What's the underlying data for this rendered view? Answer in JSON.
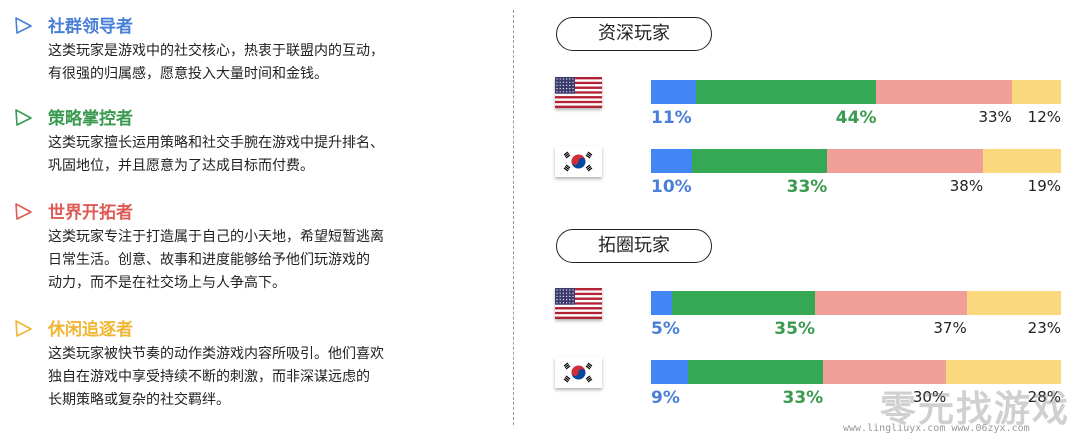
{
  "segments": [
    {
      "title": "社群领导者",
      "color": "#4A7FD9",
      "icon": "triangle-play-icon",
      "lines": [
        "这类玩家是游戏中的社交核心，热衷于联盟内的互动，",
        "有很强的归属感，愿意投入大量时间和金钱。"
      ]
    },
    {
      "title": "策略掌控者",
      "color": "#3A9A50",
      "icon": "triangle-play-icon",
      "lines": [
        "这类玩家擅长运用策略和社交手腕在游戏中提升排名、",
        "巩固地位，并且愿意为了达成目标而付费。"
      ]
    },
    {
      "title": "世界开拓者",
      "color": "#E05A55",
      "icon": "triangle-play-icon",
      "lines": [
        "这类玩家专注于打造属于自己的小天地，希望短暂逃离",
        "日常生活。创意、故事和进度能够给予他们玩游戏的",
        "动力，而不是在社交场上与人争高下。"
      ]
    },
    {
      "title": "休闲追逐者",
      "color": "#F2B531",
      "icon": "triangle-play-icon",
      "lines": [
        "这类玩家被快节奏的动作类游戏内容所吸引。他们喜欢",
        "独自在游戏中享受持续不断的刺激，而非深谋远虑的",
        "长期策略或复杂的社交羁绊。"
      ]
    }
  ],
  "chart_data": {
    "type": "bar",
    "orientation": "horizontal-stacked-100",
    "segment_colors": [
      "#4285F4",
      "#34A853",
      "#F1A099",
      "#FAD97E"
    ],
    "groups": [
      {
        "title": "资深玩家",
        "rows": [
          {
            "country": "USA",
            "flag": "us-flag-icon",
            "values": [
              11,
              44,
              33,
              12
            ],
            "labels": [
              "11%",
              "44%",
              "33%",
              "12%"
            ]
          },
          {
            "country": "South Korea",
            "flag": "kr-flag-icon",
            "values": [
              10,
              33,
              38,
              19
            ],
            "labels": [
              "10%",
              "33%",
              "38%",
              "19%"
            ]
          }
        ]
      },
      {
        "title": "拓圈玩家",
        "rows": [
          {
            "country": "USA",
            "flag": "us-flag-icon",
            "values": [
              5,
              35,
              37,
              23
            ],
            "labels": [
              "5%",
              "35%",
              "37%",
              "23%"
            ]
          },
          {
            "country": "South Korea",
            "flag": "kr-flag-icon",
            "values": [
              9,
              33,
              30,
              28
            ],
            "labels": [
              "9%",
              "33%",
              "30%",
              "28%"
            ]
          }
        ]
      }
    ]
  },
  "watermark": {
    "text": "零元找游戏",
    "url": "www.lingliuyx.com  www.06zyx.com"
  }
}
